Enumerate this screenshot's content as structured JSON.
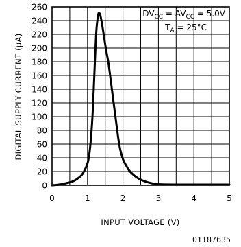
{
  "chart_data": {
    "type": "line",
    "xlabel": "INPUT VOLTAGE (V)",
    "ylabel": "DIGITAL SUPPLY CURRENT (μA)",
    "xlim": [
      0,
      5
    ],
    "ylim": [
      0,
      260
    ],
    "xticks": [
      0,
      1,
      2,
      3,
      4,
      5
    ],
    "yticks": [
      0,
      20,
      40,
      60,
      80,
      100,
      120,
      140,
      160,
      180,
      200,
      220,
      240,
      260
    ],
    "grid": true,
    "annotations": {
      "line1": {
        "parts": [
          {
            "text": "DV"
          },
          {
            "text": "CC",
            "sub": true
          },
          {
            "text": " = AV"
          },
          {
            "text": "CC",
            "sub": true
          },
          {
            "text": " = 5.0V"
          }
        ]
      },
      "line2": {
        "parts": [
          {
            "text": "T"
          },
          {
            "text": "A",
            "sub": true
          },
          {
            "text": " = 25°C"
          }
        ]
      },
      "placement": "top-right"
    },
    "series": [
      {
        "x": [
          0,
          0.2,
          0.4,
          0.6,
          0.8,
          0.9,
          1.0,
          1.05,
          1.1,
          1.15,
          1.2,
          1.25,
          1.3,
          1.33,
          1.36,
          1.4,
          1.45,
          1.5,
          1.55,
          1.6,
          1.7,
          1.8,
          1.9,
          2.0,
          2.1,
          2.2,
          2.4,
          2.6,
          2.8,
          3.0,
          3.5,
          4.0,
          4.5,
          5.0
        ],
        "values": [
          0,
          1,
          3,
          6,
          13,
          20,
          32,
          45,
          70,
          110,
          170,
          225,
          248,
          251,
          248,
          238,
          222,
          205,
          190,
          175,
          135,
          95,
          58,
          38,
          28,
          20,
          11,
          6,
          3,
          1.5,
          1,
          1,
          1,
          1
        ]
      }
    ]
  },
  "figure_id": "01187635"
}
